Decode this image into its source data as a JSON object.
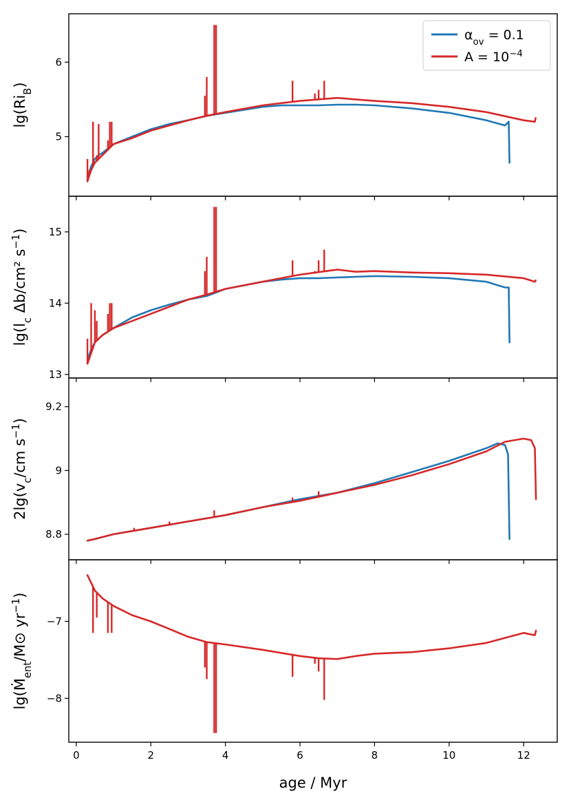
{
  "colors": {
    "blue": "#1f77b4",
    "red": "#d62728"
  },
  "legend": {
    "placement": "top-right",
    "entries": [
      {
        "label": "α_ov = 0.1",
        "color": "#1f77b4"
      },
      {
        "label": "A = 10^−4",
        "color": "#d62728"
      }
    ]
  },
  "chart_data": [
    {
      "type": "line",
      "ylabel": "lg(Ri_B)",
      "ylim": [
        4.2,
        6.65
      ],
      "yticks": [
        5,
        6
      ],
      "xlim": [
        -0.2,
        12.9
      ],
      "xticks": [
        0,
        2,
        4,
        6,
        8,
        10,
        12
      ],
      "series": [
        {
          "name": "α_ov = 0.1",
          "color": "#1f77b4",
          "x": [
            0.3,
            0.4,
            0.5,
            0.6,
            0.7,
            0.8,
            1.0,
            1.5,
            2.0,
            2.5,
            3.0,
            3.5,
            4.0,
            5.0,
            5.5,
            6.0,
            6.5,
            7.0,
            7.5,
            8.0,
            9.0,
            10.0,
            11.0,
            11.5,
            11.6,
            11.62
          ],
          "y": [
            4.45,
            4.6,
            4.7,
            4.75,
            4.78,
            4.82,
            4.9,
            5.0,
            5.1,
            5.17,
            5.22,
            5.28,
            5.32,
            5.4,
            5.42,
            5.42,
            5.42,
            5.43,
            5.43,
            5.42,
            5.38,
            5.32,
            5.22,
            5.15,
            5.2,
            4.65
          ]
        },
        {
          "name": "A = 10^−4",
          "color": "#d62728",
          "x": [
            0.3,
            0.4,
            0.5,
            0.7,
            0.9,
            1.0,
            1.5,
            2.0,
            3.0,
            3.5,
            3.7,
            4.0,
            5.0,
            6.0,
            7.0,
            7.5,
            8.0,
            9.0,
            10.0,
            11.0,
            12.0,
            12.3,
            12.32
          ],
          "y": [
            4.4,
            4.55,
            4.65,
            4.75,
            4.85,
            4.9,
            4.98,
            5.08,
            5.22,
            5.28,
            5.3,
            5.33,
            5.42,
            5.48,
            5.52,
            5.5,
            5.48,
            5.45,
            5.4,
            5.33,
            5.22,
            5.2,
            5.25
          ]
        }
      ],
      "spikes": [
        {
          "x": 0.3,
          "y_top": 4.7
        },
        {
          "x": 0.35,
          "y_top": 4.55
        },
        {
          "x": 0.45,
          "y_top": 5.2
        },
        {
          "x": 0.55,
          "y_top": 4.75
        },
        {
          "x": 0.6,
          "y_top": 5.17
        },
        {
          "x": 0.85,
          "y_top": 4.95
        },
        {
          "x": 0.9,
          "y_top": 5.2
        },
        {
          "x": 0.95,
          "y_top": 5.2
        },
        {
          "x": 3.45,
          "y_top": 5.55
        },
        {
          "x": 3.5,
          "y_top": 5.8
        },
        {
          "x": 3.7,
          "y_top": 6.5
        },
        {
          "x": 3.75,
          "y_top": 6.5
        },
        {
          "x": 5.8,
          "y_top": 5.75
        },
        {
          "x": 6.4,
          "y_top": 5.58
        },
        {
          "x": 6.5,
          "y_top": 5.63
        },
        {
          "x": 6.65,
          "y_top": 5.75
        }
      ]
    },
    {
      "type": "line",
      "ylabel": "lg(l_c Δb/cm² s^−1)",
      "ylim": [
        12.95,
        15.5
      ],
      "yticks": [
        13,
        14,
        15
      ],
      "xlim": [
        -0.2,
        12.9
      ],
      "xticks": [
        0,
        2,
        4,
        6,
        8,
        10,
        12
      ],
      "series": [
        {
          "name": "α_ov = 0.1",
          "color": "#1f77b4",
          "x": [
            0.3,
            0.4,
            0.5,
            0.7,
            1.0,
            1.5,
            2.0,
            2.5,
            3.0,
            3.5,
            4.0,
            5.0,
            5.5,
            6.0,
            6.5,
            7.0,
            7.5,
            8.0,
            9.0,
            10.0,
            11.0,
            11.5,
            11.6,
            11.62
          ],
          "y": [
            13.2,
            13.35,
            13.45,
            13.55,
            13.65,
            13.8,
            13.9,
            13.98,
            14.05,
            14.1,
            14.2,
            14.3,
            14.33,
            14.35,
            14.35,
            14.36,
            14.37,
            14.38,
            14.37,
            14.35,
            14.3,
            14.22,
            14.22,
            13.45
          ]
        },
        {
          "name": "A = 10^−4",
          "color": "#d62728",
          "x": [
            0.3,
            0.4,
            0.5,
            0.7,
            1.0,
            1.5,
            2.0,
            2.5,
            3.0,
            3.5,
            4.0,
            5.0,
            6.0,
            7.0,
            7.5,
            8.0,
            9.0,
            10.0,
            11.0,
            12.0,
            12.3,
            12.32
          ],
          "y": [
            13.15,
            13.3,
            13.45,
            13.55,
            13.65,
            13.75,
            13.85,
            13.95,
            14.05,
            14.12,
            14.2,
            14.3,
            14.4,
            14.47,
            14.44,
            14.45,
            14.43,
            14.42,
            14.4,
            14.35,
            14.3,
            14.32
          ]
        }
      ],
      "spikes": [
        {
          "x": 0.3,
          "y_top": 13.5
        },
        {
          "x": 0.4,
          "y_top": 14.0
        },
        {
          "x": 0.5,
          "y_top": 13.9
        },
        {
          "x": 0.55,
          "y_top": 13.75
        },
        {
          "x": 0.85,
          "y_top": 13.85
        },
        {
          "x": 0.9,
          "y_top": 14.0
        },
        {
          "x": 0.95,
          "y_top": 14.0
        },
        {
          "x": 3.45,
          "y_top": 14.45
        },
        {
          "x": 3.5,
          "y_top": 14.65
        },
        {
          "x": 3.7,
          "y_top": 15.35
        },
        {
          "x": 3.75,
          "y_top": 15.35
        },
        {
          "x": 5.8,
          "y_top": 14.6
        },
        {
          "x": 6.4,
          "y_top": 14.45
        },
        {
          "x": 6.5,
          "y_top": 14.6
        },
        {
          "x": 6.65,
          "y_top": 14.75
        }
      ]
    },
    {
      "type": "line",
      "ylabel": "2lg(v_c/cm s^−1)",
      "ylim": [
        8.72,
        9.29
      ],
      "yticks": [
        8.8,
        9.0,
        9.2
      ],
      "xlim": [
        -0.2,
        12.9
      ],
      "xticks": [
        0,
        2,
        4,
        6,
        8,
        10,
        12
      ],
      "series": [
        {
          "name": "α_ov = 0.1",
          "color": "#1f77b4",
          "x": [
            0.3,
            0.5,
            1.0,
            2.0,
            3.0,
            4.0,
            5.0,
            6.0,
            7.0,
            8.0,
            9.0,
            10.0,
            11.0,
            11.3,
            11.5,
            11.58,
            11.62
          ],
          "y": [
            8.78,
            8.785,
            8.8,
            8.82,
            8.84,
            8.86,
            8.885,
            8.91,
            8.93,
            8.96,
            8.995,
            9.03,
            9.07,
            9.085,
            9.08,
            9.05,
            8.785
          ]
        },
        {
          "name": "A = 10^−4",
          "color": "#d62728",
          "x": [
            0.3,
            0.5,
            1.0,
            2.0,
            3.0,
            4.0,
            5.0,
            6.0,
            7.0,
            8.0,
            9.0,
            10.0,
            11.0,
            11.5,
            12.0,
            12.2,
            12.3,
            12.33
          ],
          "y": [
            8.78,
            8.785,
            8.8,
            8.82,
            8.84,
            8.86,
            8.885,
            8.905,
            8.93,
            8.955,
            8.985,
            9.02,
            9.06,
            9.09,
            9.1,
            9.095,
            9.07,
            8.91
          ]
        }
      ],
      "spikes": [
        {
          "x": 1.55,
          "y_top": 8.82
        },
        {
          "x": 2.5,
          "y_top": 8.84
        },
        {
          "x": 3.7,
          "y_top": 8.875
        },
        {
          "x": 5.8,
          "y_top": 8.915
        },
        {
          "x": 6.5,
          "y_top": 8.935
        }
      ]
    },
    {
      "type": "line",
      "ylabel": "lg(Ṁ_ent/M⊙ yr^−1)",
      "ylim": [
        -8.57,
        -6.2
      ],
      "yticks": [
        -8,
        -7
      ],
      "xlim": [
        -0.2,
        12.9
      ],
      "xticks": [
        0,
        2,
        4,
        6,
        8,
        10,
        12
      ],
      "xlabel": "age / Myr",
      "series": [
        {
          "name": "A = 10^−4",
          "color": "#d62728",
          "x": [
            0.3,
            0.4,
            0.5,
            0.7,
            1.0,
            1.5,
            2.0,
            2.5,
            3.0,
            3.5,
            4.0,
            5.0,
            6.0,
            6.5,
            7.0,
            7.5,
            8.0,
            9.0,
            10.0,
            11.0,
            12.0,
            12.3,
            12.33
          ],
          "y": [
            -6.4,
            -6.5,
            -6.6,
            -6.7,
            -6.8,
            -6.92,
            -7.0,
            -7.1,
            -7.2,
            -7.27,
            -7.3,
            -7.37,
            -7.45,
            -7.48,
            -7.49,
            -7.45,
            -7.42,
            -7.4,
            -7.35,
            -7.28,
            -7.15,
            -7.18,
            -7.12
          ]
        }
      ],
      "spikes_down": [
        {
          "x": 0.45,
          "y_bottom": -7.15
        },
        {
          "x": 0.55,
          "y_bottom": -6.95
        },
        {
          "x": 0.85,
          "y_bottom": -7.15
        },
        {
          "x": 0.95,
          "y_bottom": -7.15
        },
        {
          "x": 3.45,
          "y_bottom": -7.6
        },
        {
          "x": 3.5,
          "y_bottom": -7.75
        },
        {
          "x": 3.7,
          "y_bottom": -8.45
        },
        {
          "x": 3.75,
          "y_bottom": -8.45
        },
        {
          "x": 5.8,
          "y_bottom": -7.72
        },
        {
          "x": 6.4,
          "y_bottom": -7.55
        },
        {
          "x": 6.5,
          "y_bottom": -7.65
        },
        {
          "x": 6.65,
          "y_bottom": -8.02
        }
      ]
    }
  ]
}
